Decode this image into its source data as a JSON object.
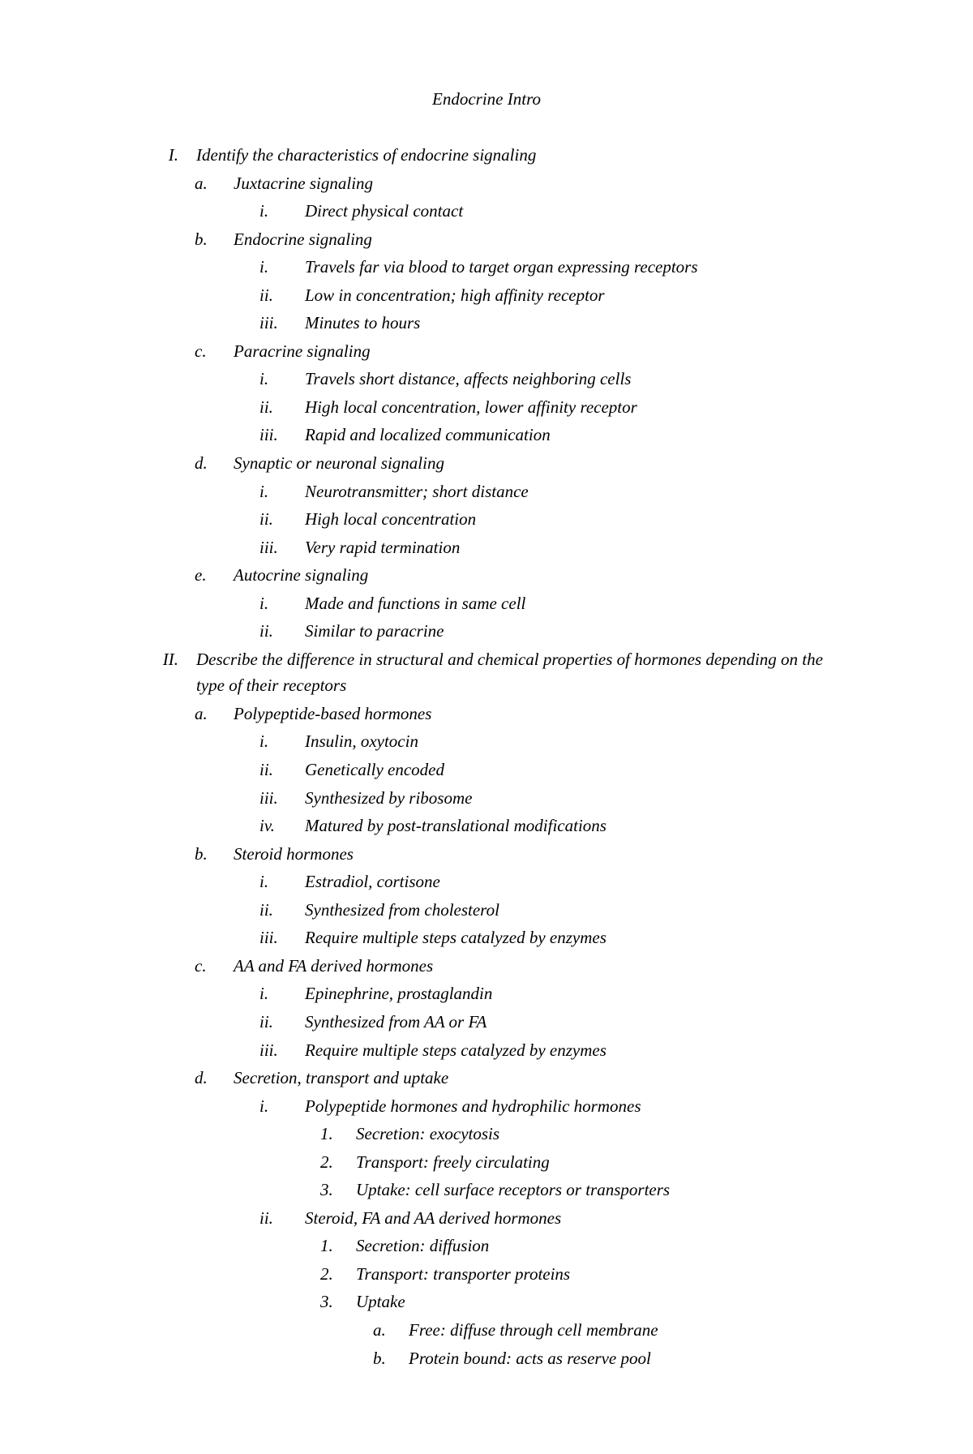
{
  "title": "Endocrine Intro",
  "outline": [
    {
      "level": 1,
      "marker": "I.",
      "text": "Identify the characteristics of endocrine signaling"
    },
    {
      "level": 2,
      "marker": "a.",
      "text": "Juxtacrine signaling"
    },
    {
      "level": 3,
      "marker": "i.",
      "text": "Direct physical contact"
    },
    {
      "level": 2,
      "marker": "b.",
      "text": "Endocrine signaling"
    },
    {
      "level": 3,
      "marker": "i.",
      "text": "Travels far via blood to target organ expressing receptors"
    },
    {
      "level": 3,
      "marker": "ii.",
      "text": "Low in concentration; high affinity receptor"
    },
    {
      "level": 3,
      "marker": "iii.",
      "text": "Minutes to hours"
    },
    {
      "level": 2,
      "marker": "c.",
      "text": "Paracrine signaling"
    },
    {
      "level": 3,
      "marker": "i.",
      "text": "Travels short distance, affects neighboring cells"
    },
    {
      "level": 3,
      "marker": "ii.",
      "text": "High local concentration, lower affinity receptor"
    },
    {
      "level": 3,
      "marker": "iii.",
      "text": "Rapid and localized communication"
    },
    {
      "level": 2,
      "marker": "d.",
      "text": "Synaptic or neuronal signaling"
    },
    {
      "level": 3,
      "marker": "i.",
      "text": "Neurotransmitter; short distance"
    },
    {
      "level": 3,
      "marker": "ii.",
      "text": "High local concentration"
    },
    {
      "level": 3,
      "marker": "iii.",
      "text": "Very rapid termination"
    },
    {
      "level": 2,
      "marker": "e.",
      "text": "Autocrine signaling"
    },
    {
      "level": 3,
      "marker": "i.",
      "text": "Made and functions in same cell"
    },
    {
      "level": 3,
      "marker": "ii.",
      "text": "Similar to paracrine"
    },
    {
      "level": 1,
      "marker": "II.",
      "text": "Describe the difference in structural and chemical properties of hormones depending on the type of their receptors"
    },
    {
      "level": 2,
      "marker": "a.",
      "text": "Polypeptide-based hormones"
    },
    {
      "level": 3,
      "marker": "i.",
      "text": "Insulin, oxytocin"
    },
    {
      "level": 3,
      "marker": "ii.",
      "text": "Genetically encoded"
    },
    {
      "level": 3,
      "marker": "iii.",
      "text": "Synthesized by ribosome"
    },
    {
      "level": 3,
      "marker": "iv.",
      "text": "Matured by post-translational modifications"
    },
    {
      "level": 2,
      "marker": "b.",
      "text": "Steroid hormones"
    },
    {
      "level": 3,
      "marker": "i.",
      "text": "Estradiol, cortisone"
    },
    {
      "level": 3,
      "marker": "ii.",
      "text": "Synthesized from cholesterol"
    },
    {
      "level": 3,
      "marker": "iii.",
      "text": "Require multiple steps catalyzed by enzymes"
    },
    {
      "level": 2,
      "marker": "c.",
      "text": "AA and FA derived hormones"
    },
    {
      "level": 3,
      "marker": "i.",
      "text": "Epinephrine, prostaglandin"
    },
    {
      "level": 3,
      "marker": "ii.",
      "text": "Synthesized from AA or FA"
    },
    {
      "level": 3,
      "marker": "iii.",
      "text": "Require multiple steps catalyzed by enzymes"
    },
    {
      "level": 2,
      "marker": "d.",
      "text": "Secretion, transport and uptake"
    },
    {
      "level": 3,
      "marker": "i.",
      "text": "Polypeptide hormones and hydrophilic hormones"
    },
    {
      "level": 4,
      "marker": "1.",
      "text": "Secretion: exocytosis"
    },
    {
      "level": 4,
      "marker": "2.",
      "text": "Transport: freely circulating"
    },
    {
      "level": 4,
      "marker": "3.",
      "text": "Uptake: cell surface receptors or transporters"
    },
    {
      "level": 3,
      "marker": "ii.",
      "text": "Steroid, FA and AA derived hormones"
    },
    {
      "level": 4,
      "marker": "1.",
      "text": "Secretion: diffusion"
    },
    {
      "level": 4,
      "marker": "2.",
      "text": "Transport: transporter proteins"
    },
    {
      "level": 4,
      "marker": "3.",
      "text": "Uptake"
    },
    {
      "level": 5,
      "marker": "a.",
      "text": "Free: diffuse through cell membrane"
    },
    {
      "level": 5,
      "marker": "b.",
      "text": "Protein bound: acts as reserve pool"
    }
  ]
}
